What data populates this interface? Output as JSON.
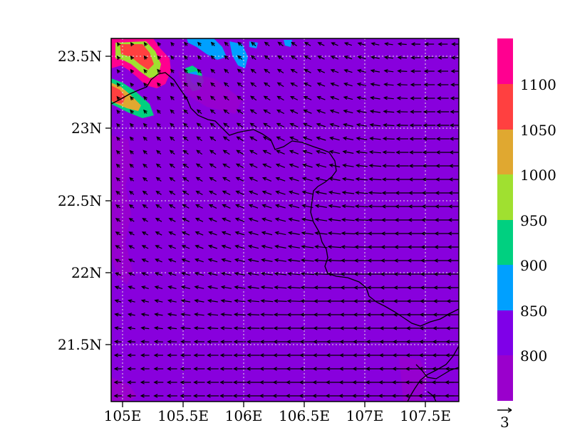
{
  "map": {
    "lat_ticks": [
      "23.5N",
      "23N",
      "22.5N",
      "22N",
      "21.5N"
    ],
    "lon_ticks": [
      "105E",
      "105.5E",
      "106E",
      "106.5E",
      "107E",
      "107.5E"
    ],
    "lon_range": [
      104.9,
      107.8
    ],
    "lat_range": [
      21.1,
      23.65
    ],
    "grid": "dotted",
    "background_color": "#8800dd",
    "vector_color": "#000000",
    "border_color": "#000000"
  },
  "colorbar": {
    "labels": [
      "800",
      "850",
      "900",
      "950",
      "1000",
      "1050",
      "1100"
    ],
    "colors": [
      "#9a00cc",
      "#7f00e8",
      "#00a0ff",
      "#00d080",
      "#a0e030",
      "#e0a830",
      "#ff4040",
      "#ff0090"
    ]
  },
  "reference_vector": {
    "label": "3"
  }
}
